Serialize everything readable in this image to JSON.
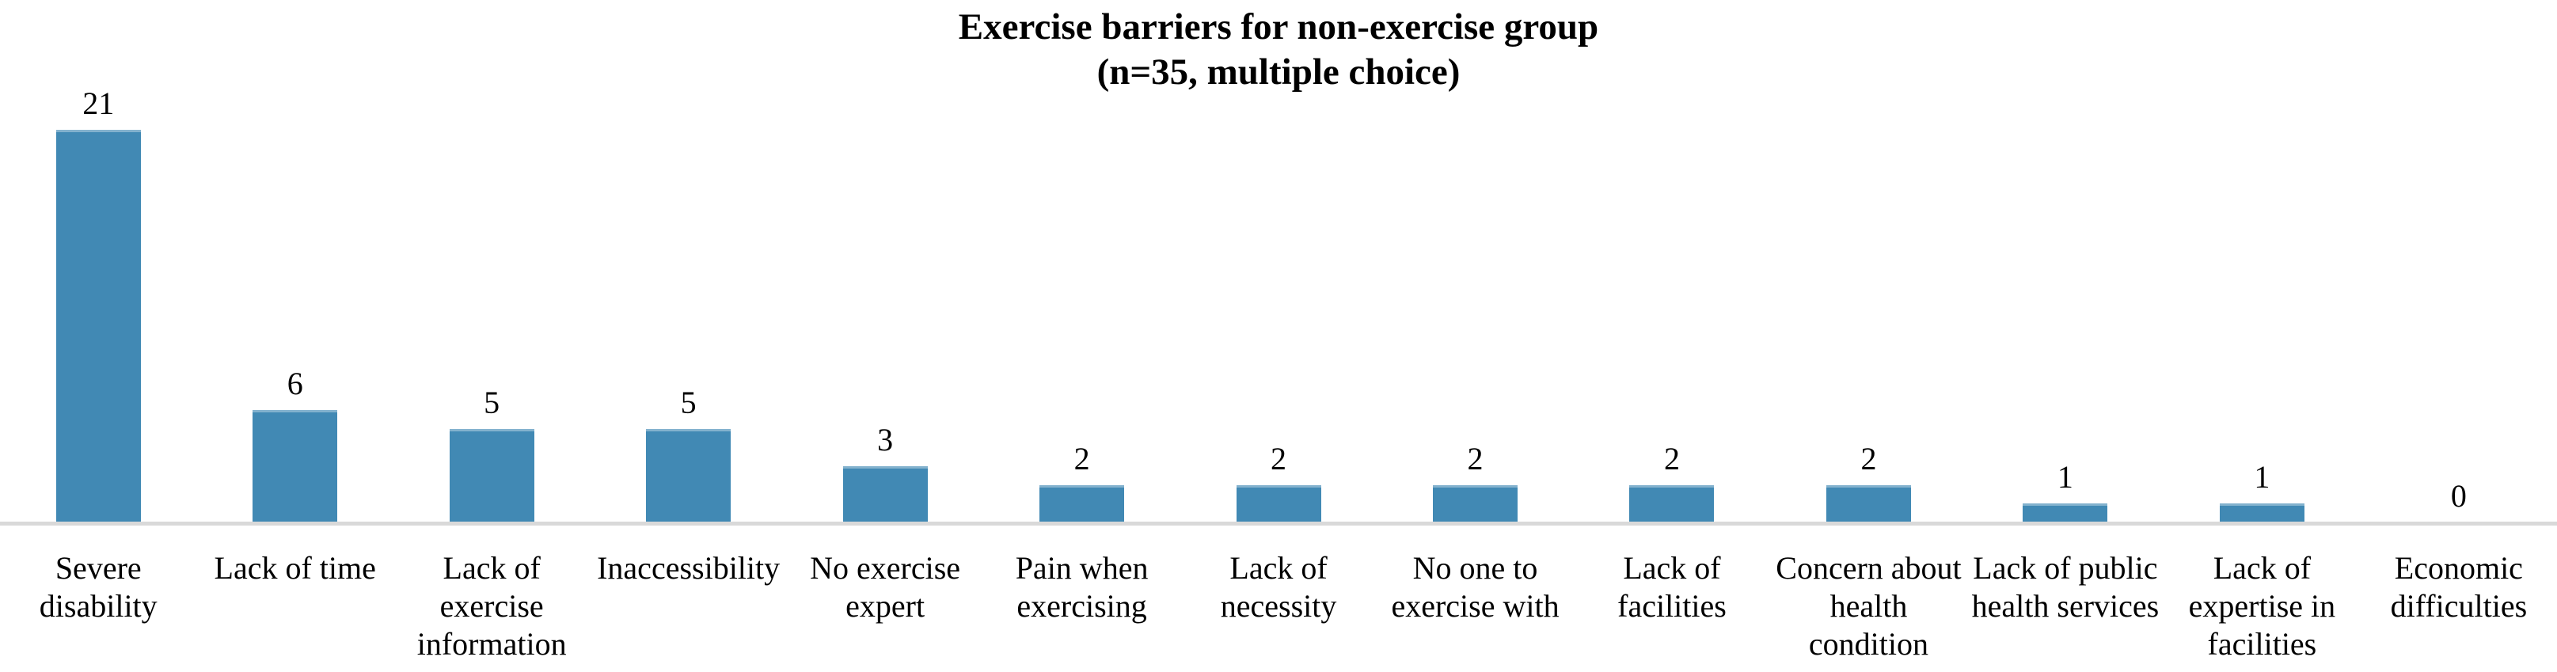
{
  "chart_data": {
    "type": "bar",
    "title": "Exercise barriers for non-exercise group",
    "subtitle": "(n=35, multiple choice)",
    "categories": [
      "Severe disability",
      "Lack of time",
      "Lack of exercise information",
      "Inaccessibility",
      "No exercise expert",
      "Pain when exercising",
      "Lack of necessity",
      "No one to exercise with",
      "Lack of facilities",
      "Concern about health condition",
      "Lack of public health services",
      "Lack of expertise in facilities",
      "Economic difficulties"
    ],
    "category_label_lines": [
      [
        "Severe",
        "disability"
      ],
      [
        "Lack of time"
      ],
      [
        "Lack of",
        "exercise",
        "information"
      ],
      [
        "Inaccessibility"
      ],
      [
        "No exercise",
        "expert"
      ],
      [
        "Pain when",
        "exercising"
      ],
      [
        "Lack of",
        "necessity"
      ],
      [
        "No one to",
        "exercise with"
      ],
      [
        "Lack of",
        "facilities"
      ],
      [
        "Concern about",
        "health",
        "condition"
      ],
      [
        "Lack of public",
        "health services"
      ],
      [
        "Lack of",
        "expertise in",
        "facilities"
      ],
      [
        "Economic",
        "difficulties"
      ]
    ],
    "values": [
      21,
      6,
      5,
      5,
      3,
      2,
      2,
      2,
      2,
      2,
      1,
      1,
      0
    ],
    "data_labels_visible": true,
    "ylim": [
      0,
      22
    ],
    "y_axis_visible": false,
    "grid": false,
    "legend_position": "none",
    "bar_color": "#4189b4",
    "axis_line_color": "#d9d9d9",
    "text_color": "#000000"
  }
}
